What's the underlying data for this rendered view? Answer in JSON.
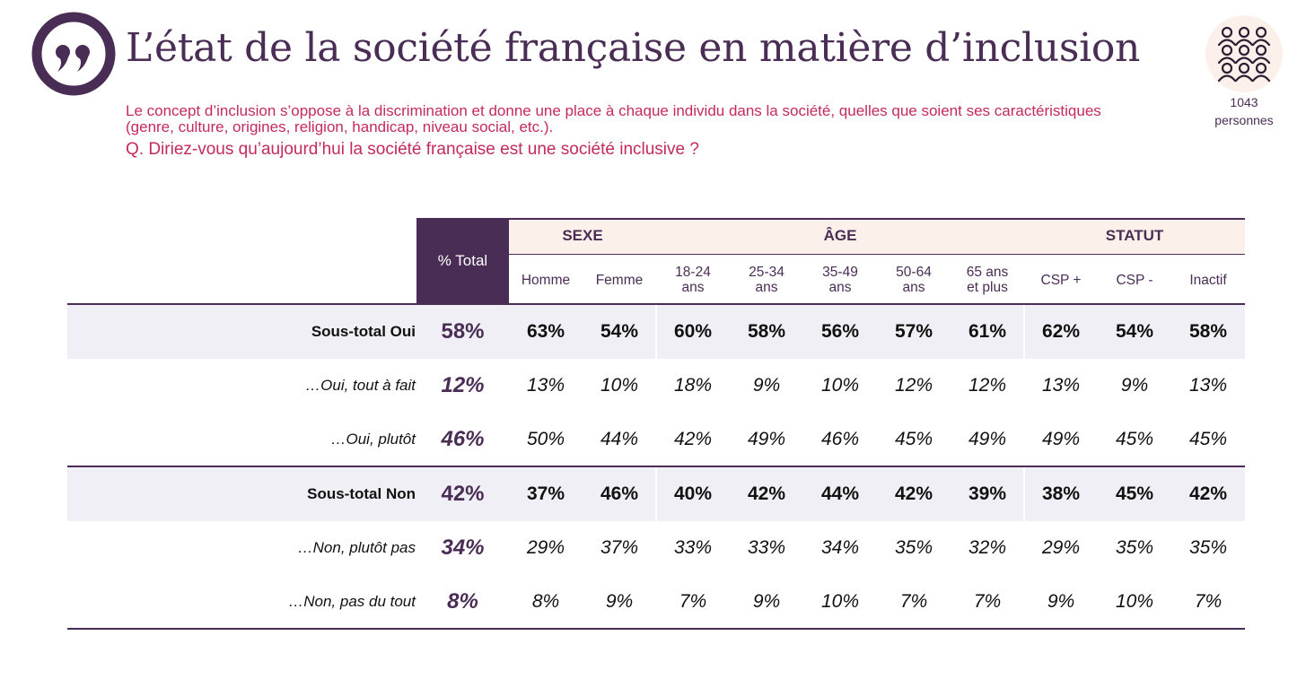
{
  "header": {
    "title": "L’état de la société française en matière d’inclusion",
    "intro": "Le concept d’inclusion s’oppose à la discrimination et donne une place à chaque individu dans la société, quelles que soient ses caractéristiques (genre, culture, origines, religion, handicap, niveau social, etc.).",
    "question": "Q. Diriez-vous qu’aujourd’hui la société française est une société inclusive ?",
    "sample_count": "1043",
    "sample_unit": "personnes"
  },
  "colors": {
    "brand": "#4a2d55",
    "accent": "#c42a5e",
    "band": "#efeff5",
    "group_band": "#fcf1ea"
  },
  "icons": {
    "logo": "quote-mark-icon",
    "sample": "people-group-icon"
  },
  "table": {
    "total_header": "% Total",
    "groups": [
      {
        "label": "SEXE",
        "columns": [
          "Homme",
          "Femme"
        ]
      },
      {
        "label": "ÂGE",
        "columns": [
          "18-24 ans",
          "25-34 ans",
          "35-49 ans",
          "50-64 ans",
          "65 ans et plus"
        ]
      },
      {
        "label": "STATUT",
        "columns": [
          "CSP +",
          "CSP -",
          "Inactif"
        ]
      }
    ],
    "columns": [
      {
        "l1": "Homme",
        "l2": ""
      },
      {
        "l1": "Femme",
        "l2": ""
      },
      {
        "l1": "18-24",
        "l2": "ans"
      },
      {
        "l1": "25-34",
        "l2": "ans"
      },
      {
        "l1": "35-49",
        "l2": "ans"
      },
      {
        "l1": "50-64",
        "l2": "ans"
      },
      {
        "l1": "65 ans",
        "l2": "et plus"
      },
      {
        "l1": "CSP +",
        "l2": ""
      },
      {
        "l1": "CSP -",
        "l2": ""
      },
      {
        "l1": "Inactif",
        "l2": ""
      }
    ],
    "rows": [
      {
        "label": "Sous-total Oui",
        "style": "subtotal",
        "total": "58%",
        "values": [
          "63%",
          "54%",
          "60%",
          "58%",
          "56%",
          "57%",
          "61%",
          "62%",
          "54%",
          "58%"
        ]
      },
      {
        "label": "…Oui, tout à fait",
        "style": "detail",
        "total": "12%",
        "values": [
          "13%",
          "10%",
          "18%",
          "9%",
          "10%",
          "12%",
          "12%",
          "13%",
          "9%",
          "13%"
        ]
      },
      {
        "label": "…Oui, plutôt",
        "style": "detail",
        "total": "46%",
        "values": [
          "50%",
          "44%",
          "42%",
          "49%",
          "46%",
          "45%",
          "49%",
          "49%",
          "45%",
          "45%"
        ]
      },
      {
        "label": "Sous-total Non",
        "style": "subtotal",
        "total": "42%",
        "values": [
          "37%",
          "46%",
          "40%",
          "42%",
          "44%",
          "42%",
          "39%",
          "38%",
          "45%",
          "42%"
        ]
      },
      {
        "label": "…Non, plutôt pas",
        "style": "detail",
        "total": "34%",
        "values": [
          "29%",
          "37%",
          "33%",
          "33%",
          "34%",
          "35%",
          "32%",
          "29%",
          "35%",
          "35%"
        ]
      },
      {
        "label": "…Non, pas du tout",
        "style": "detail",
        "total": "8%",
        "values": [
          "8%",
          "9%",
          "7%",
          "9%",
          "10%",
          "7%",
          "7%",
          "9%",
          "10%",
          "7%"
        ]
      }
    ]
  }
}
